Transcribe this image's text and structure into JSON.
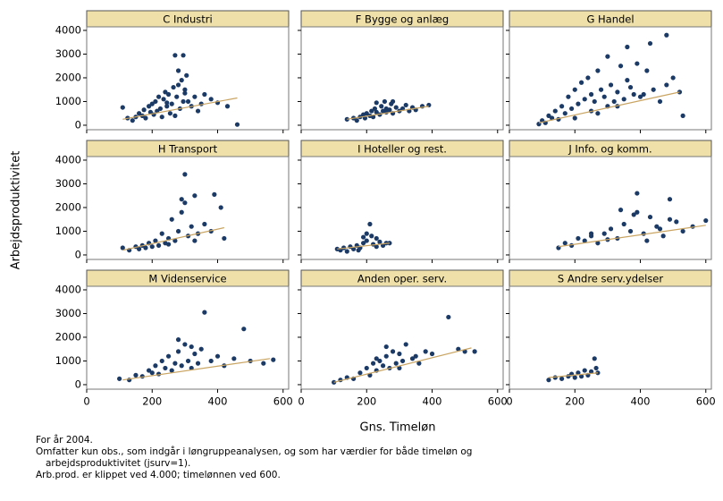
{
  "y_label": "Arbejdsproduktivitet",
  "x_label": "Gns. Timeløn",
  "notes": [
    "For år 2004.",
    "Omfatter kun obs., som indgår i løngruppeanalysen, og som har værdier for både timeløn og",
    "arbejdsproduktivitet (jsurv=1).",
    "Arb.prod. er klippet ved 4.000; timelønnen ved 600."
  ],
  "chart_data": [
    {
      "type": "scatter",
      "title": "C Industri",
      "color": "#1c3a66",
      "x": [
        110,
        125,
        140,
        150,
        160,
        170,
        175,
        180,
        190,
        195,
        200,
        205,
        210,
        215,
        220,
        225,
        230,
        235,
        240,
        245,
        250,
        255,
        260,
        265,
        270,
        275,
        280,
        285,
        290,
        295,
        300,
        305,
        310,
        320,
        330,
        340,
        350,
        360,
        380,
        400,
        430,
        460,
        270,
        295,
        280,
        300,
        245
      ],
      "y": [
        750,
        300,
        200,
        350,
        500,
        400,
        650,
        300,
        800,
        550,
        900,
        450,
        1000,
        600,
        1200,
        700,
        350,
        1100,
        1400,
        800,
        1300,
        500,
        900,
        1600,
        2950,
        1200,
        2300,
        700,
        1900,
        2950,
        1500,
        2100,
        1000,
        800,
        1200,
        600,
        900,
        1300,
        1100,
        950,
        800,
        30,
        400,
        1000,
        1700,
        1350,
        950
      ],
      "trend": {
        "color": "#c9a461",
        "x": [
          110,
          460
        ],
        "y": [
          250,
          1150
        ]
      },
      "xlim": [
        0,
        617
      ],
      "ylim": [
        -190,
        4150
      ],
      "xticks": [
        0,
        200,
        400,
        600
      ],
      "yticks": [
        0,
        1000,
        2000,
        3000,
        4000
      ]
    },
    {
      "type": "scatter",
      "title": "F Bygge og anlæg",
      "color": "#1c3a66",
      "x": [
        140,
        160,
        170,
        180,
        190,
        195,
        200,
        210,
        215,
        220,
        225,
        230,
        240,
        245,
        250,
        255,
        260,
        270,
        275,
        280,
        290,
        300,
        310,
        320,
        330,
        340,
        350,
        370,
        390,
        230,
        260,
        280
      ],
      "y": [
        250,
        300,
        200,
        350,
        450,
        300,
        500,
        400,
        600,
        350,
        700,
        550,
        450,
        800,
        600,
        1000,
        700,
        650,
        900,
        500,
        750,
        600,
        700,
        850,
        600,
        750,
        650,
        800,
        850,
        950,
        550,
        1000
      ],
      "trend": {
        "color": "#c9a461",
        "x": [
          140,
          390
        ],
        "y": [
          250,
          800
        ]
      },
      "xlim": [
        0,
        617
      ],
      "ylim": [
        -190,
        4150
      ],
      "xticks": [
        0,
        200,
        400,
        600
      ],
      "yticks": [
        0,
        1000,
        2000,
        3000,
        4000
      ]
    },
    {
      "type": "scatter",
      "title": "G Handel",
      "color": "#1c3a66",
      "x": [
        90,
        100,
        110,
        120,
        130,
        140,
        150,
        160,
        170,
        180,
        190,
        200,
        210,
        220,
        230,
        240,
        250,
        260,
        270,
        280,
        290,
        300,
        310,
        320,
        330,
        340,
        350,
        360,
        370,
        380,
        390,
        400,
        420,
        440,
        460,
        480,
        500,
        520,
        530,
        300,
        360,
        430,
        480,
        250,
        200,
        330,
        410,
        270
      ],
      "y": [
        50,
        200,
        100,
        400,
        300,
        600,
        250,
        800,
        500,
        1200,
        700,
        1500,
        900,
        1800,
        1100,
        2000,
        1300,
        1000,
        2300,
        1500,
        1200,
        2900,
        1700,
        1000,
        1400,
        2500,
        1100,
        3300,
        1600,
        1300,
        2600,
        1200,
        2300,
        1500,
        1000,
        1700,
        2000,
        1400,
        400,
        800,
        1900,
        3450,
        3800,
        600,
        300,
        800,
        1300,
        500
      ],
      "trend": {
        "color": "#c9a461",
        "x": [
          90,
          520
        ],
        "y": [
          100,
          1400
        ]
      },
      "xlim": [
        0,
        617
      ],
      "ylim": [
        -190,
        4150
      ],
      "xticks": [
        0,
        200,
        400,
        600
      ],
      "yticks": [
        0,
        1000,
        2000,
        3000,
        4000
      ]
    },
    {
      "type": "scatter",
      "title": "H Transport",
      "color": "#1c3a66",
      "x": [
        110,
        130,
        150,
        160,
        170,
        180,
        190,
        200,
        210,
        220,
        230,
        240,
        250,
        260,
        270,
        280,
        290,
        300,
        310,
        320,
        330,
        340,
        360,
        380,
        390,
        410,
        420,
        300,
        290,
        330,
        250
      ],
      "y": [
        300,
        200,
        350,
        250,
        400,
        300,
        500,
        350,
        600,
        400,
        900,
        500,
        700,
        1500,
        600,
        1000,
        2350,
        3400,
        800,
        1200,
        2500,
        900,
        1300,
        1000,
        2550,
        2000,
        700,
        2200,
        1800,
        600,
        450
      ],
      "trend": {
        "color": "#c9a461",
        "x": [
          110,
          420
        ],
        "y": [
          200,
          1150
        ]
      },
      "xlim": [
        0,
        617
      ],
      "ylim": [
        -190,
        4150
      ],
      "xticks": [
        0,
        200,
        400,
        600
      ],
      "yticks": [
        0,
        1000,
        2000,
        3000,
        4000
      ]
    },
    {
      "type": "scatter",
      "title": "I Hoteller og rest.",
      "color": "#1c3a66",
      "x": [
        110,
        120,
        130,
        140,
        150,
        160,
        170,
        180,
        190,
        200,
        210,
        220,
        230,
        240,
        250,
        260,
        270,
        200,
        215,
        175,
        230,
        190
      ],
      "y": [
        250,
        200,
        300,
        150,
        350,
        250,
        400,
        300,
        500,
        600,
        1300,
        450,
        700,
        550,
        400,
        500,
        500,
        900,
        800,
        200,
        350,
        750
      ],
      "trend": {
        "color": "#c9a461",
        "x": [
          110,
          270
        ],
        "y": [
          250,
          500
        ]
      },
      "xlim": [
        0,
        617
      ],
      "ylim": [
        -190,
        4150
      ],
      "xticks": [
        0,
        200,
        400,
        600
      ],
      "yticks": [
        0,
        1000,
        2000,
        3000,
        4000
      ]
    },
    {
      "type": "scatter",
      "title": "J Info. og komm.",
      "color": "#1c3a66",
      "x": [
        150,
        170,
        190,
        210,
        230,
        250,
        270,
        290,
        310,
        330,
        350,
        370,
        390,
        410,
        430,
        450,
        470,
        490,
        510,
        530,
        560,
        600,
        390,
        490,
        340,
        420,
        300,
        250,
        460,
        380
      ],
      "y": [
        300,
        500,
        400,
        700,
        600,
        800,
        500,
        900,
        1100,
        700,
        1300,
        1000,
        2600,
        900,
        1600,
        1200,
        800,
        2350,
        1400,
        1000,
        1200,
        1450,
        1800,
        1500,
        1900,
        600,
        650,
        900,
        1100,
        1700
      ],
      "trend": {
        "color": "#c9a461",
        "x": [
          150,
          600
        ],
        "y": [
          350,
          1250
        ]
      },
      "xlim": [
        0,
        617
      ],
      "ylim": [
        -190,
        4150
      ],
      "xticks": [
        0,
        200,
        400,
        600
      ],
      "yticks": [
        0,
        1000,
        2000,
        3000,
        4000
      ]
    },
    {
      "type": "scatter",
      "title": "M Videnservice",
      "color": "#1c3a66",
      "x": [
        100,
        130,
        150,
        170,
        190,
        200,
        210,
        220,
        230,
        240,
        250,
        260,
        270,
        280,
        290,
        300,
        310,
        320,
        330,
        340,
        350,
        360,
        380,
        400,
        420,
        450,
        480,
        500,
        540,
        570,
        280,
        320
      ],
      "y": [
        250,
        200,
        400,
        350,
        600,
        500,
        800,
        450,
        1000,
        700,
        1200,
        600,
        900,
        1900,
        800,
        1700,
        1000,
        700,
        1300,
        900,
        1500,
        3050,
        1000,
        1200,
        800,
        1100,
        2350,
        1000,
        900,
        1050,
        1400,
        1600
      ],
      "trend": {
        "color": "#c9a461",
        "x": [
          110,
          560
        ],
        "y": [
          200,
          1100
        ]
      },
      "xlim": [
        0,
        617
      ],
      "ylim": [
        -190,
        4150
      ],
      "xticks": [
        0,
        200,
        400,
        600
      ],
      "yticks": [
        0,
        1000,
        2000,
        3000,
        4000
      ]
    },
    {
      "type": "scatter",
      "title": "Anden oper. serv.",
      "color": "#1c3a66",
      "x": [
        100,
        120,
        140,
        160,
        180,
        200,
        210,
        220,
        230,
        240,
        250,
        260,
        270,
        280,
        290,
        300,
        310,
        320,
        340,
        360,
        380,
        400,
        450,
        480,
        500,
        530,
        260,
        300,
        230,
        350
      ],
      "y": [
        100,
        200,
        300,
        250,
        500,
        700,
        400,
        900,
        600,
        1000,
        800,
        1200,
        700,
        1400,
        900,
        1300,
        1000,
        1700,
        1100,
        900,
        1400,
        1300,
        2850,
        1500,
        1400,
        1400,
        1600,
        700,
        1100,
        1200
      ],
      "trend": {
        "color": "#c9a461",
        "x": [
          100,
          520
        ],
        "y": [
          100,
          1550
        ]
      },
      "xlim": [
        0,
        617
      ],
      "ylim": [
        -190,
        4150
      ],
      "xticks": [
        0,
        200,
        400,
        600
      ],
      "yticks": [
        0,
        1000,
        2000,
        3000,
        4000
      ]
    },
    {
      "type": "scatter",
      "title": "S Andre serv.ydelser",
      "color": "#1c3a66",
      "x": [
        120,
        140,
        160,
        180,
        190,
        200,
        210,
        220,
        230,
        240,
        250,
        260,
        270,
        265
      ],
      "y": [
        200,
        300,
        250,
        350,
        450,
        300,
        500,
        350,
        600,
        400,
        550,
        1100,
        500,
        700
      ],
      "trend": {
        "color": "#c9a461",
        "x": [
          120,
          270
        ],
        "y": [
          300,
          500
        ]
      },
      "xlim": [
        0,
        617
      ],
      "ylim": [
        -190,
        4150
      ],
      "xticks": [
        0,
        200,
        400,
        600
      ],
      "yticks": [
        0,
        1000,
        2000,
        3000,
        4000
      ]
    }
  ]
}
